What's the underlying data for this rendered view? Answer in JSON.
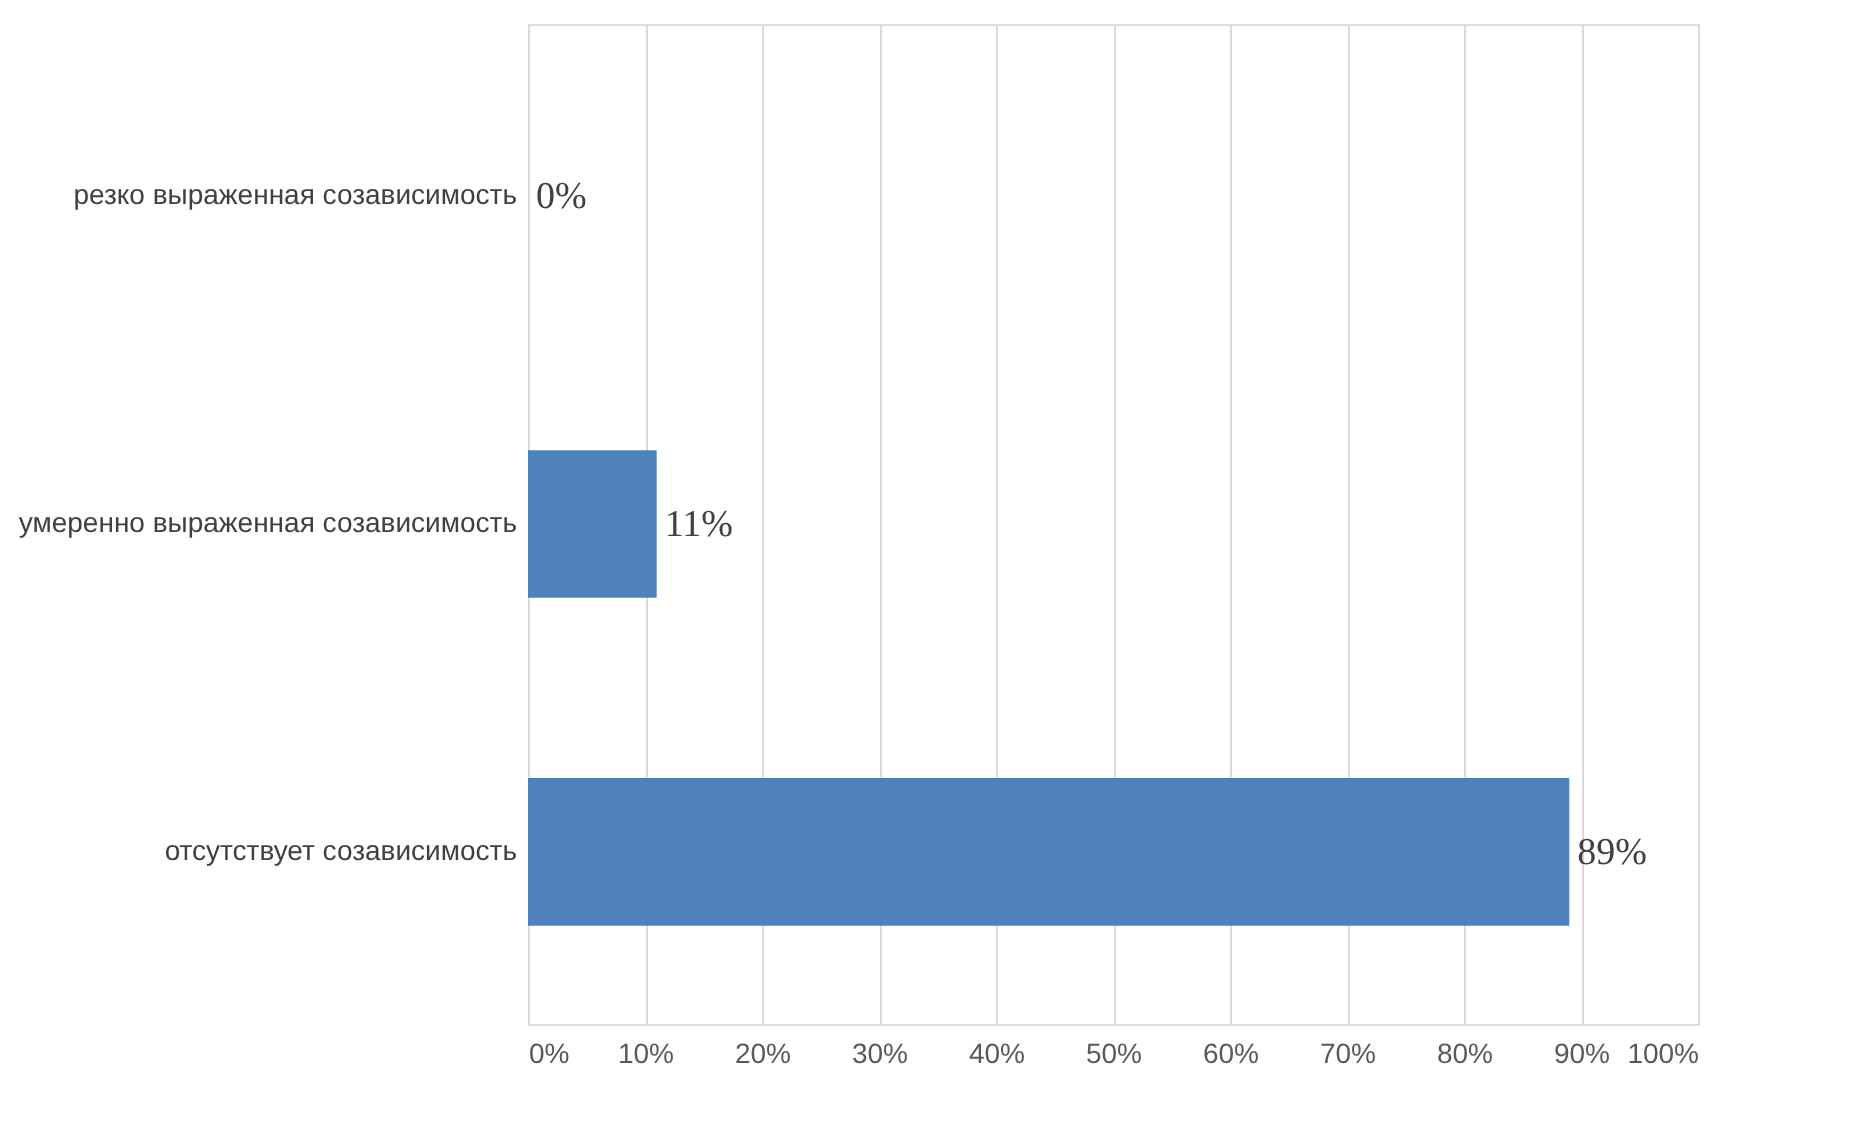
{
  "chart_data": {
    "type": "bar",
    "orientation": "horizontal",
    "categories": [
      "резко выраженная созависимость",
      "умеренно выраженная созависимость",
      "отсутствует созависимость"
    ],
    "values": [
      0,
      11,
      89
    ],
    "color": "#4f81bd",
    "value_labels": [
      "0%",
      "11%",
      "89%"
    ],
    "xlim": [
      0,
      100
    ],
    "xticks": [
      {
        "value": 0,
        "label": "0%"
      },
      {
        "value": 10,
        "label": "10%"
      },
      {
        "value": 20,
        "label": "20%"
      },
      {
        "value": 30,
        "label": "30%"
      },
      {
        "value": 40,
        "label": "40%"
      },
      {
        "value": 50,
        "label": "50%"
      },
      {
        "value": 60,
        "label": "60%"
      },
      {
        "value": 70,
        "label": "70%"
      },
      {
        "value": 80,
        "label": "80%"
      },
      {
        "value": 90,
        "label": "90%"
      },
      {
        "value": 100,
        "label": "100%"
      }
    ],
    "grid": "x"
  }
}
